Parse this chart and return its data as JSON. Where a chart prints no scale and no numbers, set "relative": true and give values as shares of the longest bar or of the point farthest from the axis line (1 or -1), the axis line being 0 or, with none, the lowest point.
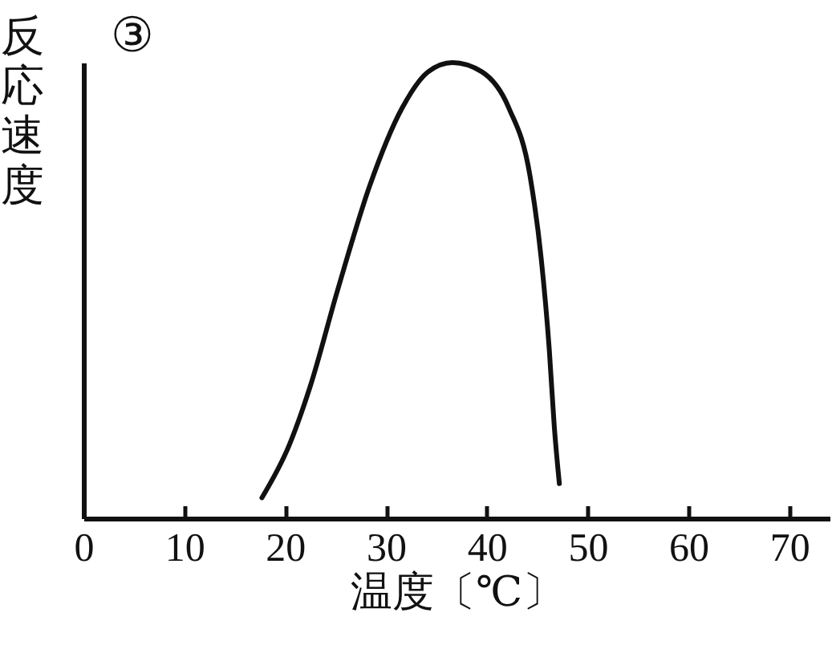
{
  "chart_data": {
    "type": "line",
    "title": "③",
    "xlabel": "温度〔℃〕",
    "ylabel": "反応速度",
    "relative": true,
    "x": [
      17.7,
      20.4,
      22.5,
      25.2,
      28.4,
      31.6,
      34.2,
      36.6,
      39.5,
      42.2,
      44.3,
      45.4,
      46.2,
      46.7,
      47.2
    ],
    "series": [
      {
        "color": "#111111",
        "values": [
          0.045,
          0.16,
          0.29,
          0.5,
          0.73,
          0.9,
          0.98,
          1,
          0.98,
          0.9,
          0.75,
          0.57,
          0.37,
          0.2,
          0.076
        ]
      }
    ],
    "xlim": [
      0,
      74
    ],
    "xticks": [
      0,
      10,
      20,
      30,
      40,
      50,
      60,
      70
    ],
    "grid": false,
    "marker": "none",
    "line_style": "solid"
  }
}
